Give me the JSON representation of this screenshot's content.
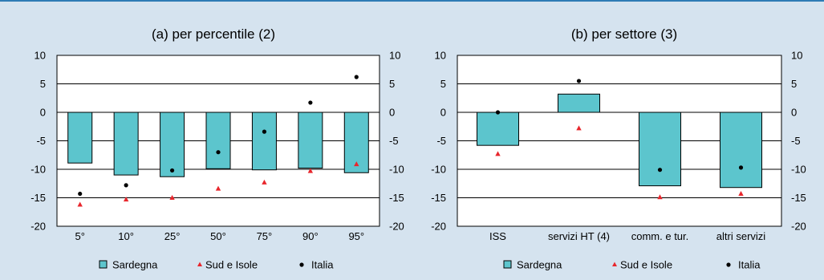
{
  "colors": {
    "background": "#d5e3ef",
    "rule": "#2e7bb5",
    "bar_fill": "#5cc5cd",
    "bar_stroke": "#000000",
    "grid": "#000000",
    "sud_marker": "#e8262c",
    "italia_marker": "#000000"
  },
  "chart_data": [
    {
      "type": "bar",
      "title": "(a) per percentile (2)",
      "categories": [
        "5°",
        "10°",
        "25°",
        "50°",
        "75°",
        "90°",
        "95°"
      ],
      "ylim": [
        -20,
        10
      ],
      "yticks": [
        "10",
        "5",
        "0",
        "-5",
        "-10",
        "-15",
        "-20"
      ],
      "grid": true,
      "legend_position": "bottom",
      "legend": [
        "Sardegna",
        "Sud e Isole",
        "Italia"
      ],
      "series": [
        {
          "name": "Sardegna",
          "kind": "bar",
          "values": [
            -8.9,
            -11.0,
            -11.3,
            -9.9,
            -10.1,
            -9.8,
            -10.6
          ]
        },
        {
          "name": "Sud e Isole",
          "kind": "triangle",
          "values": [
            -16.2,
            -15.3,
            -15.0,
            -13.4,
            -12.3,
            -10.3,
            -9.1
          ]
        },
        {
          "name": "Italia",
          "kind": "dot",
          "values": [
            -14.3,
            -12.8,
            -10.2,
            -7.0,
            -3.4,
            1.7,
            6.2
          ]
        }
      ]
    },
    {
      "type": "bar",
      "title": "(b) per settore (3)",
      "categories": [
        "ISS",
        "servizi HT (4)",
        "comm. e tur.",
        "altri servizi"
      ],
      "ylim": [
        -20,
        10
      ],
      "yticks": [
        "10",
        "5",
        "0",
        "-5",
        "-10",
        "-15",
        "-20"
      ],
      "grid": true,
      "legend_position": "bottom",
      "legend": [
        "Sardegna",
        "Sud e Isole",
        "Italia"
      ],
      "series": [
        {
          "name": "Sardegna",
          "kind": "bar",
          "values": [
            -5.8,
            3.2,
            -12.9,
            -13.2
          ]
        },
        {
          "name": "Sud e Isole",
          "kind": "triangle",
          "values": [
            -7.3,
            -2.8,
            -14.9,
            -14.3
          ]
        },
        {
          "name": "Italia",
          "kind": "dot",
          "values": [
            0.0,
            5.5,
            -10.1,
            -9.7
          ]
        }
      ]
    }
  ]
}
